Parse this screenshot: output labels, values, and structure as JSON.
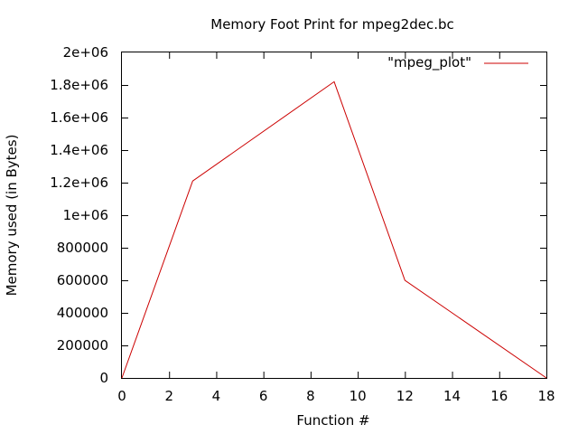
{
  "chart_data": {
    "type": "line",
    "title": "Memory Foot Print for mpeg2dec.bc",
    "xlabel": "Function #",
    "ylabel": "Memory used (in Bytes)",
    "xlim": [
      0,
      18
    ],
    "ylim": [
      0,
      2000000
    ],
    "xticks": [
      0,
      2,
      4,
      6,
      8,
      10,
      12,
      14,
      16,
      18
    ],
    "xtick_labels": [
      "0",
      "2",
      "4",
      "6",
      "8",
      "10",
      "12",
      "14",
      "16",
      "18"
    ],
    "yticks": [
      0,
      200000,
      400000,
      600000,
      800000,
      1000000,
      1200000,
      1400000,
      1600000,
      1800000,
      2000000
    ],
    "ytick_labels": [
      "0",
      "200000",
      "400000",
      "600000",
      "800000",
      "1e+06",
      "1.2e+06",
      "1.4e+06",
      "1.6e+06",
      "1.8e+06",
      "2e+06"
    ],
    "grid": false,
    "legend_position": "top-right",
    "series": [
      {
        "name": "\"mpeg_plot\"",
        "color": "#cc0000",
        "x": [
          0,
          3,
          9,
          12,
          18
        ],
        "y": [
          0,
          1210000,
          1820000,
          600000,
          0
        ]
      }
    ]
  }
}
